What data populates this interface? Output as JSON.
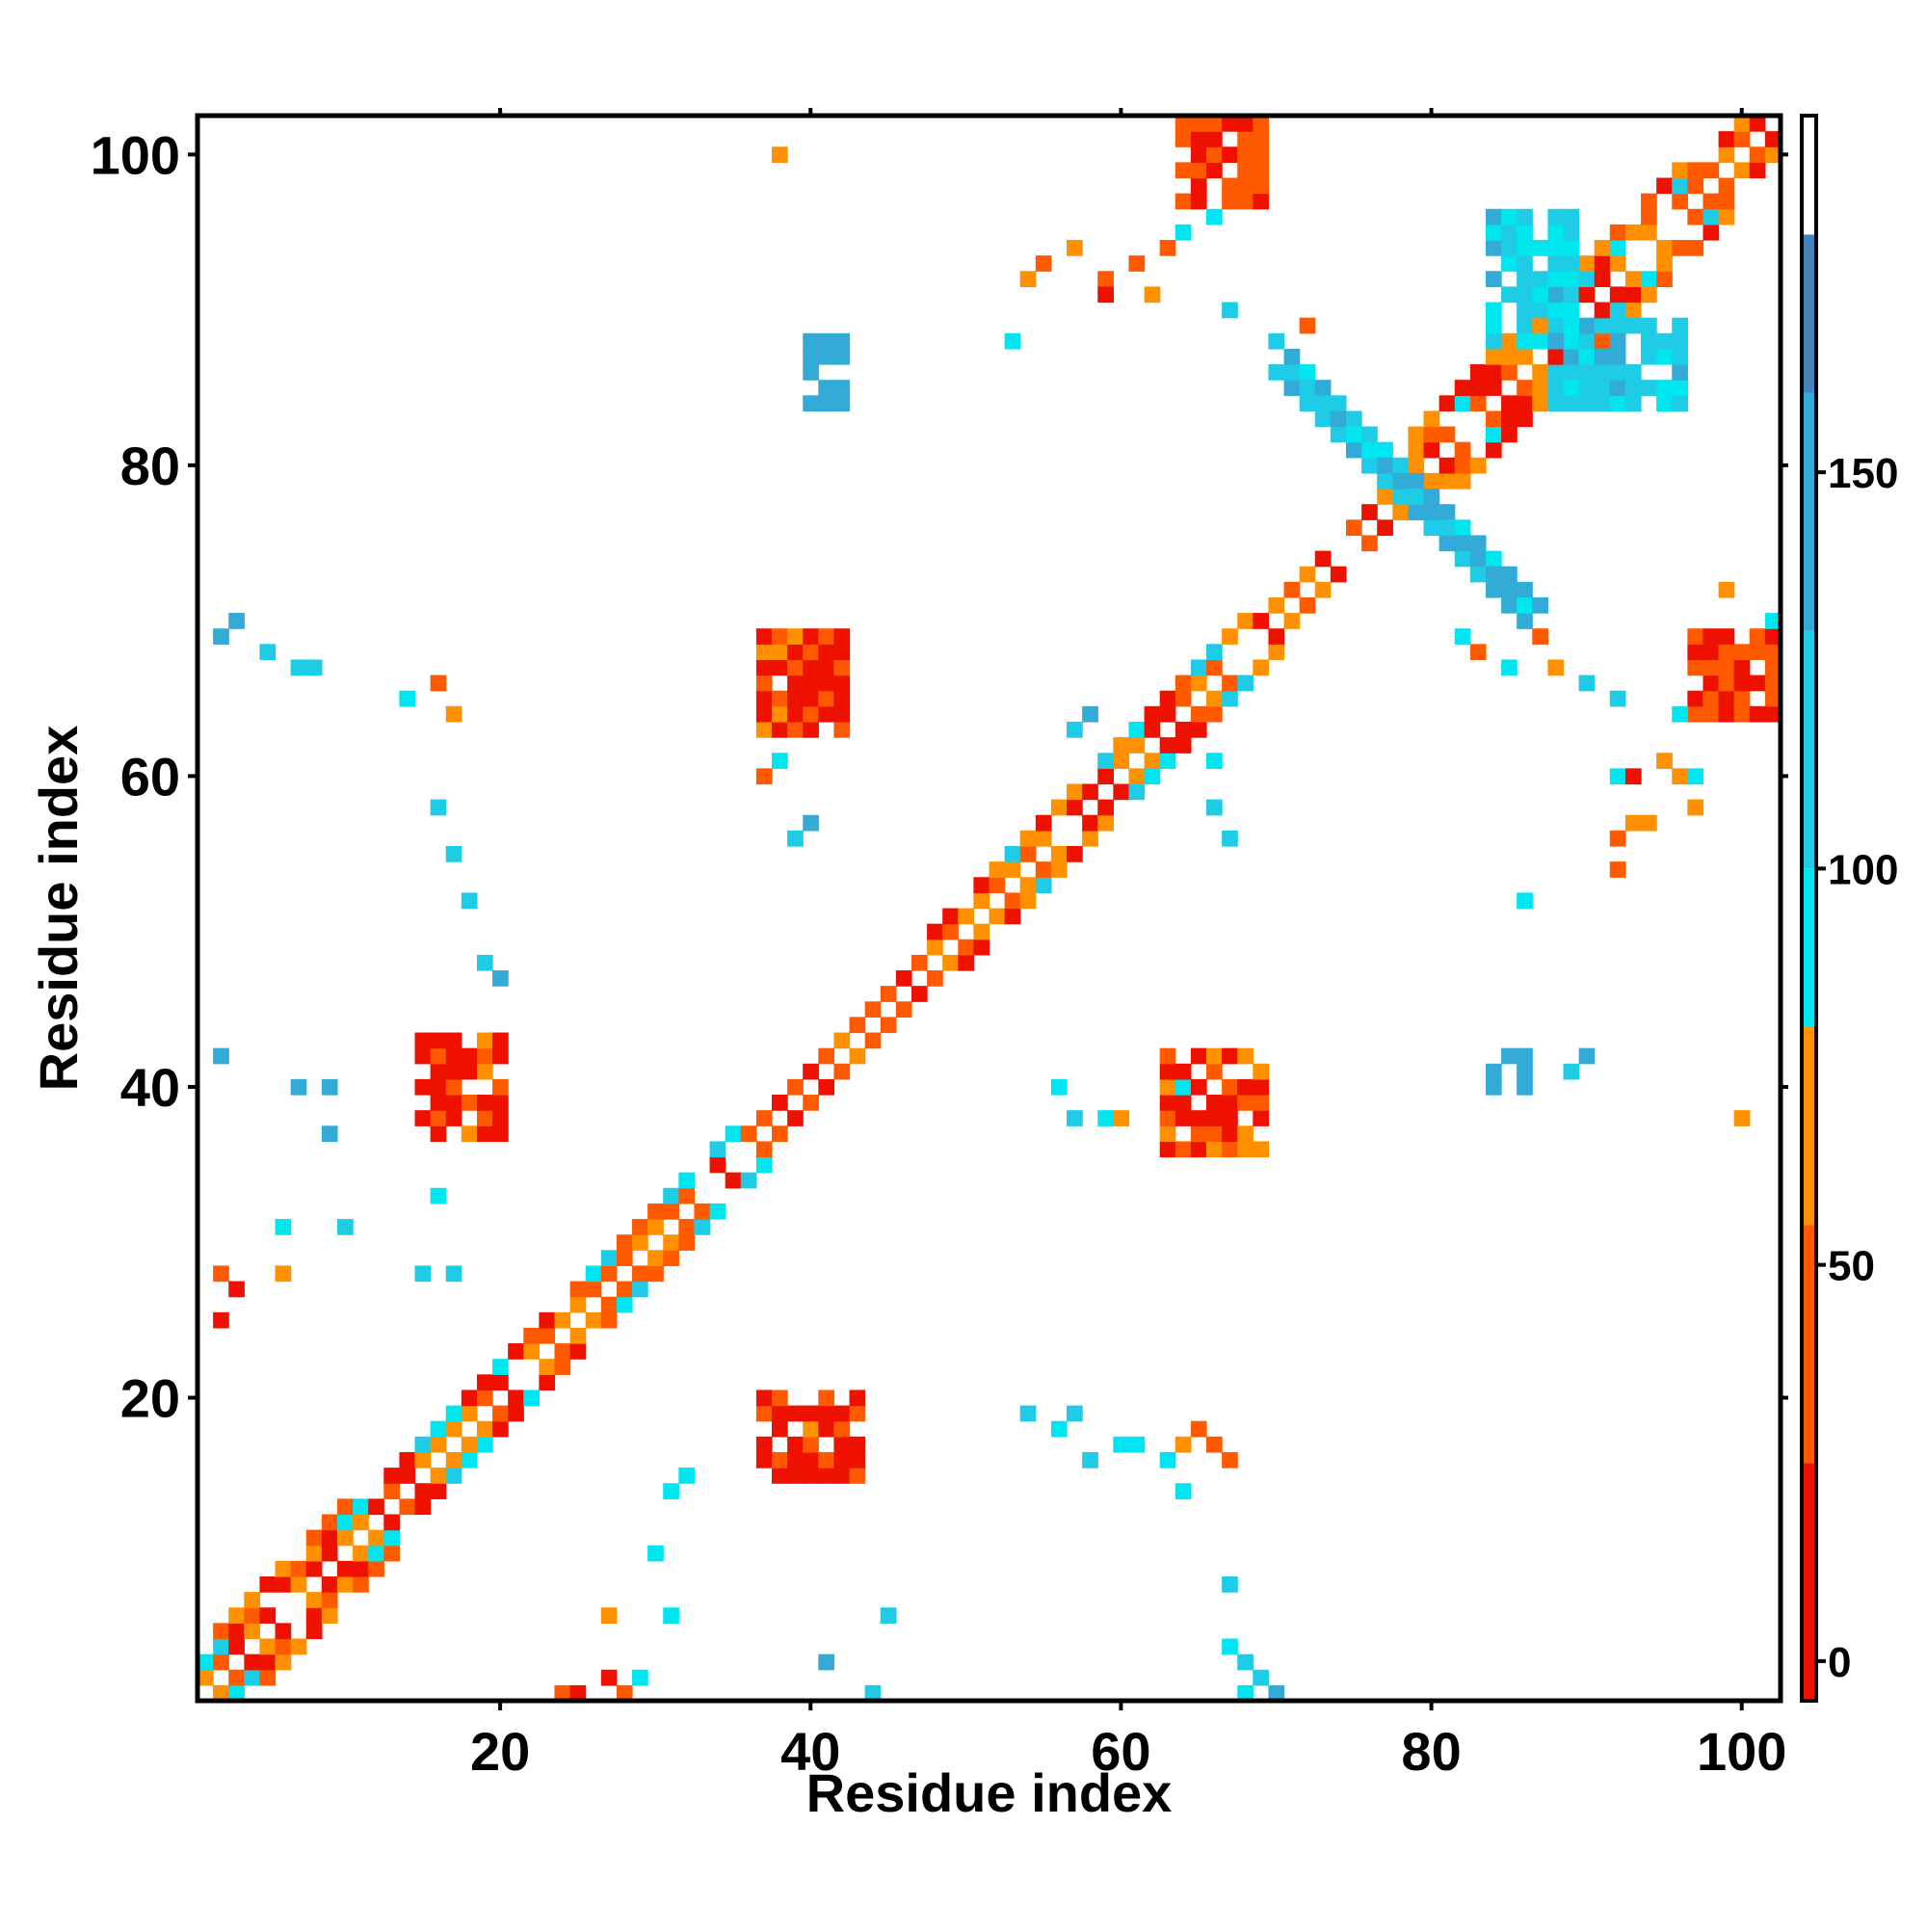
{
  "chart_data": {
    "type": "heatmap",
    "title": "",
    "xlabel": "Residue index",
    "ylabel": "Residue index",
    "xlim": [
      1,
      102
    ],
    "ylim": [
      1,
      102
    ],
    "x_ticks": [
      20,
      40,
      60,
      80,
      100
    ],
    "y_ticks": [
      20,
      40,
      60,
      80,
      100
    ],
    "x_tick_labels": [
      "20",
      "40",
      "60",
      "80",
      "100"
    ],
    "y_tick_labels": [
      "20",
      "40",
      "60",
      "80",
      "100"
    ],
    "grid": false,
    "legend": "colorbar-right",
    "colorbar": {
      "range": [
        -5,
        195
      ],
      "ticks": [
        0,
        50,
        100,
        150
      ],
      "tick_labels": [
        "0",
        "50",
        "100",
        "150"
      ],
      "bands": [
        {
          "from": -5,
          "to": 25,
          "color": "#ee1100"
        },
        {
          "from": 25,
          "to": 55,
          "color": "#ff5a00"
        },
        {
          "from": 55,
          "to": 80,
          "color": "#ff9100"
        },
        {
          "from": 80,
          "to": 100,
          "color": "#00e6f0"
        },
        {
          "from": 100,
          "to": 130,
          "color": "#1fcce6"
        },
        {
          "from": 130,
          "to": 160,
          "color": "#32acd6"
        },
        {
          "from": 160,
          "to": 180,
          "color": "#4682bd"
        },
        {
          "from": 180,
          "to": 195,
          "color": "#ffffff"
        }
      ]
    },
    "value_colors": {
      "0": "#ee1100",
      "40": "#ff5a00",
      "65": "#ff9100",
      "90": "#00e6f0",
      "115": "#1fcce6",
      "145": "#32acd6",
      "170": "#4682bd"
    },
    "regions": [
      {
        "kind": "band",
        "from": [
          1,
          1
        ],
        "to": [
          10,
          10
        ],
        "width": 3
      },
      {
        "kind": "band",
        "from": [
          10,
          10
        ],
        "to": [
          35,
          35
        ],
        "width": 2
      },
      {
        "kind": "band",
        "from": [
          35,
          35
        ],
        "to": [
          48,
          48
        ],
        "width": 1
      },
      {
        "kind": "band",
        "from": [
          48,
          48
        ],
        "to": [
          68,
          68
        ],
        "width": 2
      },
      {
        "kind": "band",
        "from": [
          68,
          68
        ],
        "to": [
          79,
          79
        ],
        "width": 1
      },
      {
        "kind": "band",
        "from": [
          79,
          79
        ],
        "to": [
          96,
          96
        ],
        "width": 3
      },
      {
        "kind": "band",
        "from": [
          96,
          96
        ],
        "to": [
          102,
          102
        ],
        "width": 2
      },
      {
        "kind": "anti",
        "from": [
          71,
          86
        ],
        "to": [
          79,
          78
        ],
        "width": 1,
        "value": 145
      },
      {
        "kind": "anti",
        "from": [
          79,
          78
        ],
        "to": [
          86,
          71
        ],
        "width": 1,
        "value": 145
      },
      {
        "kind": "blob",
        "x": [
          15,
          20
        ],
        "y": [
          37,
          43
        ],
        "value": 0
      },
      {
        "kind": "blob",
        "x": [
          37,
          42
        ],
        "y": [
          63,
          69
        ],
        "value": 0
      },
      {
        "kind": "blob",
        "x": [
          37,
          43
        ],
        "y": [
          15,
          20
        ],
        "value": 0
      },
      {
        "kind": "blob",
        "x": [
          63,
          69
        ],
        "y": [
          36,
          42
        ],
        "value": 0
      },
      {
        "kind": "blob",
        "x": [
          64,
          69
        ],
        "y": [
          97,
          102
        ],
        "value": 40
      },
      {
        "kind": "blob",
        "x": [
          97,
          102
        ],
        "y": [
          64,
          69
        ],
        "value": 40
      },
      {
        "kind": "blob",
        "x": [
          84,
          89
        ],
        "y": [
          88,
          96
        ],
        "value": 115
      },
      {
        "kind": "blob",
        "x": [
          88,
          96
        ],
        "y": [
          84,
          89
        ],
        "value": 115
      },
      {
        "kind": "blob",
        "x": [
          40,
          42
        ],
        "y": [
          84,
          88
        ],
        "value": 145
      },
      {
        "kind": "blob",
        "x": [
          84,
          86
        ],
        "y": [
          40,
          42
        ],
        "value": 145
      }
    ],
    "scattered": [
      [
        38,
        100,
        65
      ],
      [
        45,
        6,
        115
      ],
      [
        2,
        69,
        145
      ],
      [
        3,
        70,
        145
      ],
      [
        5,
        68,
        115
      ],
      [
        7,
        67,
        115
      ],
      [
        8,
        67,
        115
      ],
      [
        9,
        40,
        145
      ],
      [
        7,
        40,
        145
      ],
      [
        9,
        37,
        145
      ],
      [
        2,
        42,
        145
      ],
      [
        6,
        31,
        90
      ],
      [
        10,
        31,
        115
      ],
      [
        14,
        65,
        90
      ],
      [
        16,
        66,
        40
      ],
      [
        17,
        64,
        65
      ],
      [
        16,
        58,
        115
      ],
      [
        17,
        55,
        115
      ],
      [
        18,
        52,
        115
      ],
      [
        19,
        48,
        115
      ],
      [
        20,
        47,
        145
      ],
      [
        16,
        33,
        90
      ],
      [
        15,
        28,
        115
      ],
      [
        17,
        28,
        115
      ],
      [
        2,
        28,
        40
      ],
      [
        3,
        27,
        0
      ],
      [
        2,
        25,
        0
      ],
      [
        6,
        28,
        65
      ],
      [
        30,
        10,
        90
      ],
      [
        31,
        6,
        90
      ],
      [
        27,
        6,
        65
      ],
      [
        31,
        14,
        90
      ],
      [
        32,
        15,
        90
      ],
      [
        37,
        60,
        40
      ],
      [
        38,
        61,
        90
      ],
      [
        39,
        56,
        115
      ],
      [
        40,
        57,
        145
      ],
      [
        24,
        1,
        40
      ],
      [
        25,
        1,
        0
      ],
      [
        27,
        2,
        0
      ],
      [
        28,
        1,
        40
      ],
      [
        29,
        2,
        90
      ],
      [
        41,
        3,
        145
      ],
      [
        44,
        1,
        115
      ],
      [
        53,
        88,
        90
      ],
      [
        54,
        92,
        65
      ],
      [
        55,
        93,
        40
      ],
      [
        57,
        94,
        65
      ],
      [
        59,
        92,
        40
      ],
      [
        59,
        91,
        0
      ],
      [
        61,
        93,
        40
      ],
      [
        62,
        91,
        65
      ],
      [
        63,
        94,
        40
      ],
      [
        64,
        95,
        90
      ],
      [
        67,
        90,
        115
      ],
      [
        66,
        96,
        90
      ],
      [
        70,
        88,
        115
      ],
      [
        72,
        89,
        40
      ],
      [
        57,
        63,
        115
      ],
      [
        58,
        64,
        145
      ],
      [
        56,
        40,
        90
      ],
      [
        57,
        38,
        115
      ],
      [
        59,
        38,
        90
      ],
      [
        60,
        38,
        65
      ],
      [
        64,
        40,
        90
      ],
      [
        54,
        19,
        115
      ],
      [
        56,
        18,
        90
      ],
      [
        57,
        19,
        115
      ],
      [
        58,
        16,
        115
      ],
      [
        60,
        17,
        90
      ],
      [
        61,
        17,
        90
      ],
      [
        63,
        16,
        90
      ],
      [
        64,
        17,
        65
      ],
      [
        65,
        18,
        40
      ],
      [
        66,
        17,
        40
      ],
      [
        67,
        16,
        40
      ],
      [
        64,
        14,
        90
      ],
      [
        67,
        8,
        115
      ],
      [
        67,
        4,
        90
      ],
      [
        68,
        3,
        115
      ],
      [
        69,
        2,
        115
      ],
      [
        70,
        1,
        145
      ],
      [
        68,
        1,
        90
      ],
      [
        86,
        42,
        145
      ],
      [
        90,
        42,
        145
      ],
      [
        89,
        41,
        115
      ],
      [
        86,
        52,
        90
      ],
      [
        92,
        56,
        40
      ],
      [
        93,
        57,
        65
      ],
      [
        92,
        54,
        40
      ],
      [
        94,
        57,
        65
      ],
      [
        92,
        60,
        90
      ],
      [
        93,
        60,
        0
      ],
      [
        95,
        61,
        65
      ],
      [
        96,
        60,
        65
      ],
      [
        97,
        60,
        90
      ],
      [
        96,
        64,
        90
      ],
      [
        100,
        38,
        65
      ],
      [
        97,
        58,
        65
      ],
      [
        82,
        69,
        90
      ],
      [
        83,
        68,
        40
      ],
      [
        85,
        67,
        90
      ],
      [
        87,
        69,
        40
      ],
      [
        88,
        67,
        65
      ],
      [
        90,
        66,
        115
      ],
      [
        92,
        65,
        115
      ],
      [
        102,
        70,
        90
      ],
      [
        99,
        72,
        65
      ],
      [
        66,
        58,
        115
      ],
      [
        67,
        56,
        115
      ],
      [
        66,
        61,
        90
      ],
      [
        62,
        60,
        90
      ],
      [
        63,
        61,
        90
      ]
    ]
  }
}
